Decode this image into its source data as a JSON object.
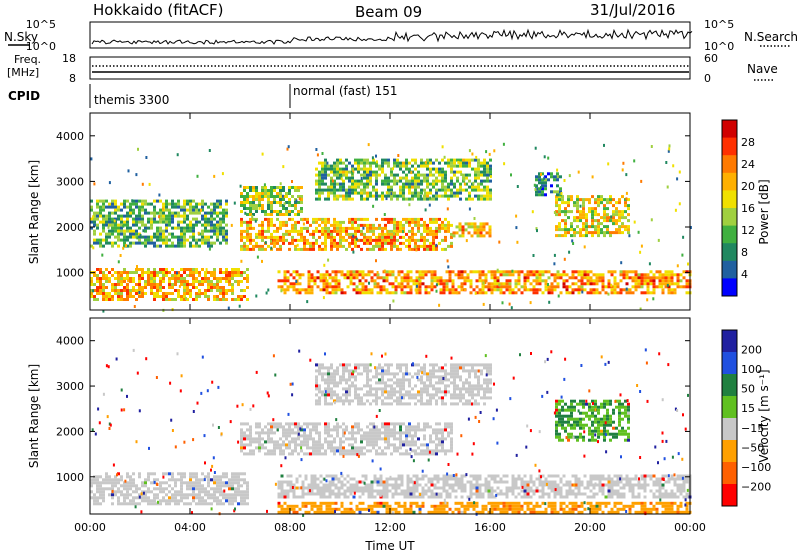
{
  "header": {
    "title": "Hokkaido (fitACF)",
    "beam": "Beam 09",
    "date": "31/Jul/2016"
  },
  "panels": {
    "nsky_label": "N.Sky",
    "nsearch_label": "N.Search",
    "freq_label_1": "Freq.",
    "freq_label_2": "[MHz]",
    "nave_label": "Nave",
    "cpid_label": "CPID",
    "nsky_ticks": [
      "10^5",
      "10^0"
    ],
    "nsearch_ticks": [
      "10^5",
      "10^0"
    ],
    "freq_ticks": [
      "18",
      "8"
    ],
    "nave_ticks": [
      "60",
      "0"
    ],
    "cpid_modes": [
      "themis 3300",
      "normal (fast) 151"
    ]
  },
  "colorbars": {
    "power": {
      "label": "Power [dB]",
      "ticks": [
        "28",
        "24",
        "20",
        "16",
        "12",
        "8",
        "4"
      ],
      "colors": [
        "#d00000",
        "#ff3000",
        "#ff7a00",
        "#ffb000",
        "#f0e000",
        "#a0d040",
        "#40b040",
        "#208860",
        "#2060a0",
        "#0000ff"
      ]
    },
    "velocity": {
      "label": "Velocity [m s⁻¹]",
      "ticks": [
        "200",
        "100",
        "50",
        "15",
        "−15",
        "−50",
        "−100",
        "−200"
      ],
      "colors": [
        "#2020a0",
        "#2050e0",
        "#208040",
        "#60c020",
        "#c8c8c8",
        "#ffa000",
        "#ff6000",
        "#ff0000"
      ]
    }
  },
  "chart_data": [
    {
      "type": "heatmap",
      "name": "power",
      "ylabel": "Slant Range [km]",
      "ylim": [
        180,
        4500
      ],
      "yticks": [
        "4000",
        "3000",
        "2000",
        "1000"
      ],
      "xlim": [
        0,
        24
      ],
      "regions": [
        {
          "t0": 0.0,
          "t1": 6.3,
          "r0": 400,
          "r1": 1100,
          "level": 22
        },
        {
          "t0": 7.5,
          "t1": 24.0,
          "r0": 550,
          "r1": 1050,
          "level": 24
        },
        {
          "t0": 6.0,
          "t1": 14.5,
          "r0": 1500,
          "r1": 2200,
          "level": 22
        },
        {
          "t0": 14.5,
          "t1": 16.0,
          "r0": 1800,
          "r1": 2100,
          "level": 22
        },
        {
          "t0": 6.0,
          "t1": 8.5,
          "r0": 2300,
          "r1": 2900,
          "level": 16
        },
        {
          "t0": 9.0,
          "t1": 16.0,
          "r0": 2600,
          "r1": 3500,
          "level": 14
        },
        {
          "t0": 0.0,
          "t1": 5.5,
          "r0": 1600,
          "r1": 2600,
          "level": 13
        },
        {
          "t0": 18.6,
          "t1": 21.5,
          "r0": 1800,
          "r1": 2700,
          "level": 19
        },
        {
          "t0": 17.8,
          "t1": 18.8,
          "r0": 2700,
          "r1": 3200,
          "level": 10
        }
      ]
    },
    {
      "type": "heatmap",
      "name": "velocity",
      "ylabel": "Slant Range [km]",
      "xlabel": "Time UT",
      "ylim": [
        180,
        4500
      ],
      "yticks": [
        "4000",
        "3000",
        "2000",
        "1000"
      ],
      "xlim": [
        0,
        24
      ],
      "xticks": [
        "00:00",
        "04:00",
        "08:00",
        "12:00",
        "16:00",
        "20:00",
        "00:00"
      ],
      "regions": [
        {
          "t0": 0.0,
          "t1": 6.3,
          "r0": 400,
          "r1": 1100,
          "level": 0
        },
        {
          "t0": 7.5,
          "t1": 24.0,
          "r0": 550,
          "r1": 1050,
          "level": 0
        },
        {
          "t0": 6.0,
          "t1": 14.5,
          "r0": 1500,
          "r1": 2200,
          "level": 0
        },
        {
          "t0": 9.0,
          "t1": 16.0,
          "r0": 2600,
          "r1": 3500,
          "level": 0
        },
        {
          "t0": 18.6,
          "t1": 21.5,
          "r0": 1800,
          "r1": 2700,
          "level": 30
        },
        {
          "t0": 7.5,
          "t1": 24.0,
          "r0": 200,
          "r1": 450,
          "level": -40
        }
      ]
    }
  ]
}
